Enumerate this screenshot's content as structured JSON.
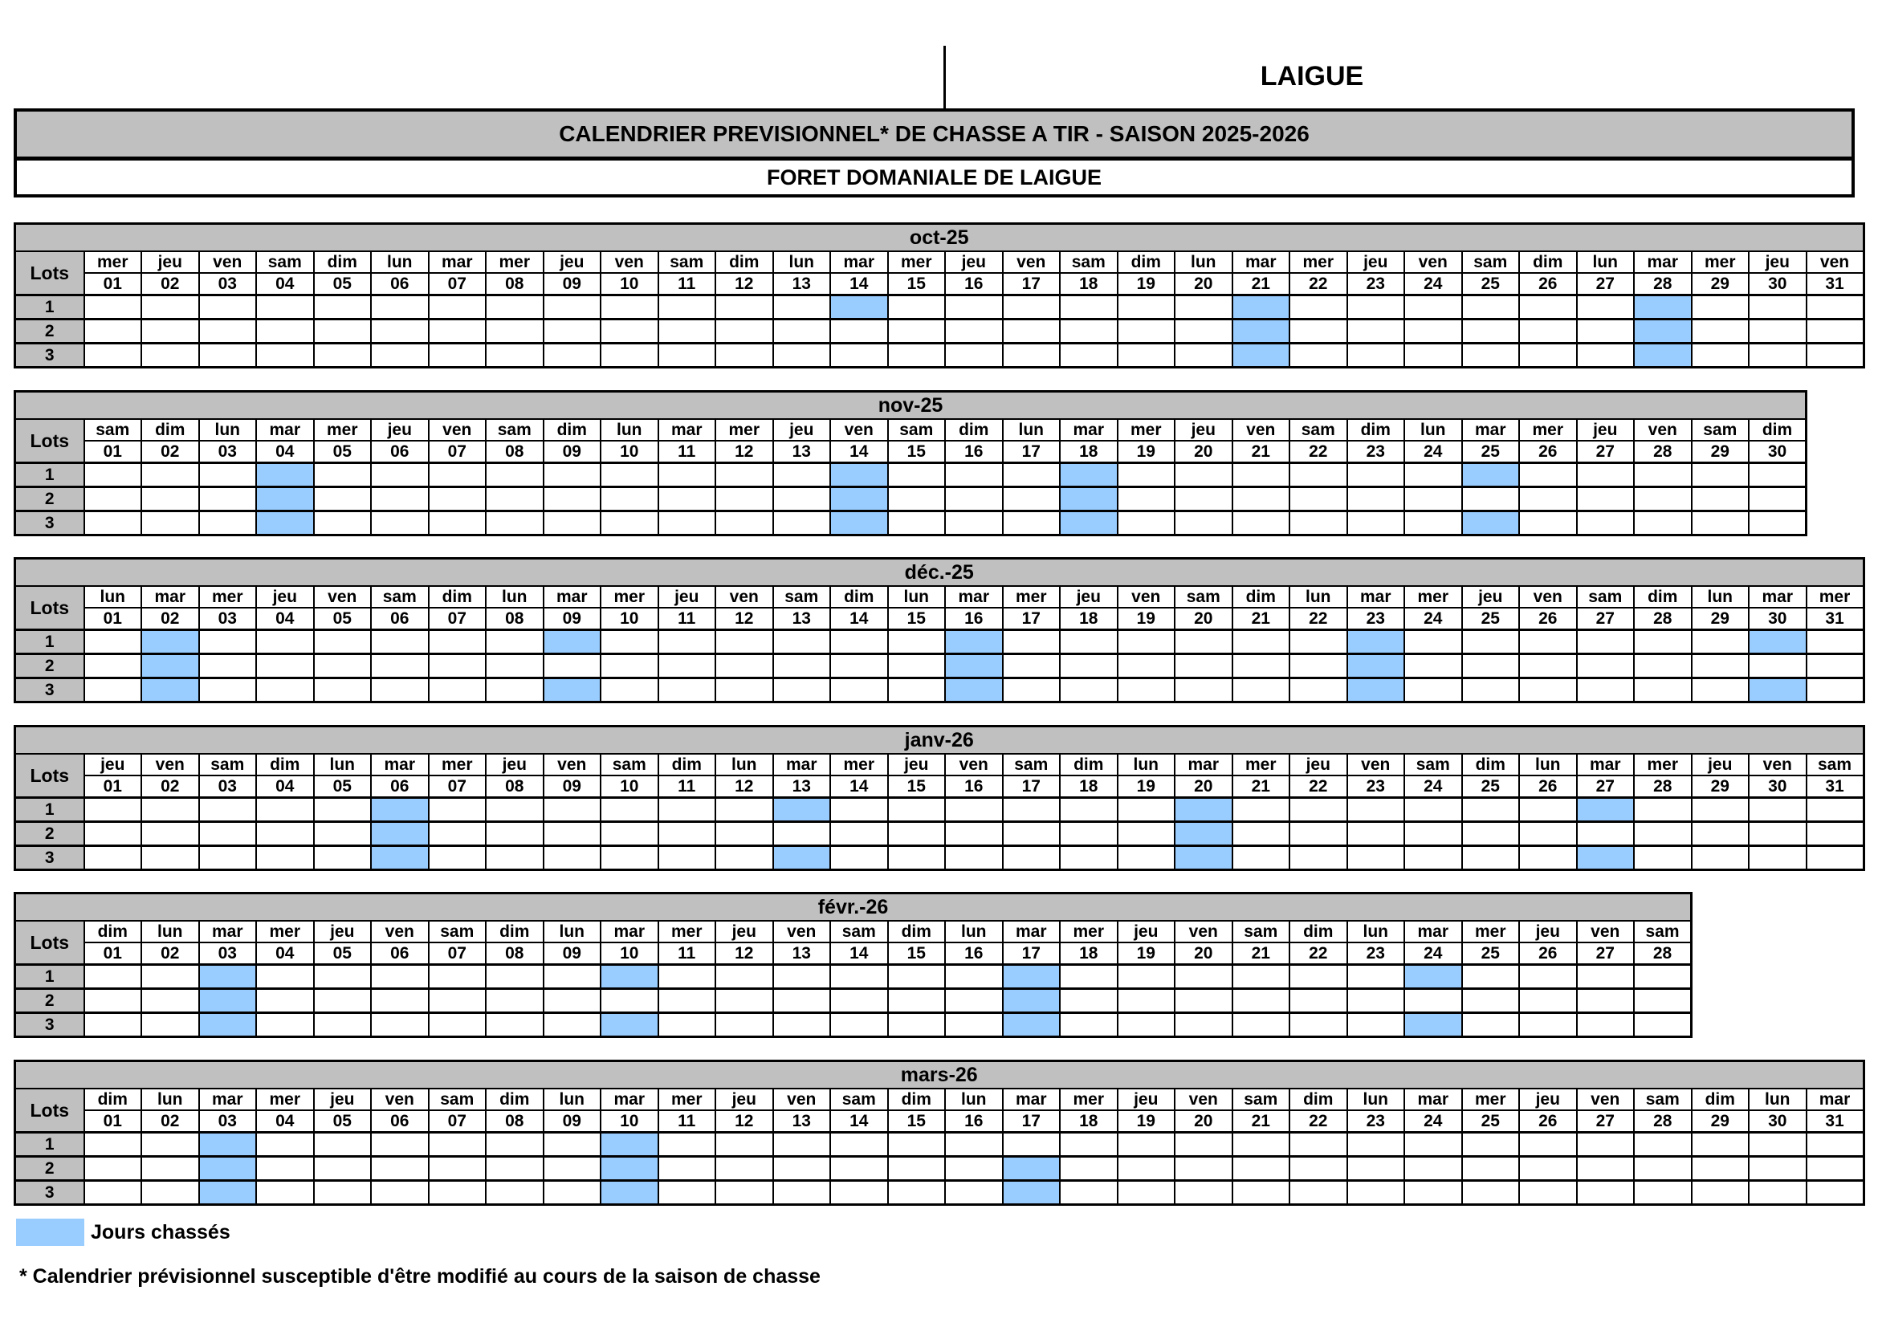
{
  "header": {
    "corner_label": "LAIGUE",
    "title": "CALENDRIER PREVISIONNEL* DE CHASSE A TIR - SAISON 2025-2026",
    "subtitle": "FORET DOMANIALE DE LAIGUE"
  },
  "lots_header": "Lots",
  "legend": {
    "label": "Jours chassés"
  },
  "footnote": "* Calendrier prévisionnel susceptible d'être modifié au cours de la saison de chasse",
  "colors": {
    "header_gray": "#C0C0C0",
    "hunted_blue": "#99CCFF",
    "grid_black": "#000000"
  },
  "months": [
    {
      "label": "oct-25",
      "days": 31,
      "weekdays": [
        "mer",
        "jeu",
        "ven",
        "sam",
        "dim",
        "lun",
        "mar",
        "mer",
        "jeu",
        "ven",
        "sam",
        "dim",
        "lun",
        "mar",
        "mer",
        "jeu",
        "ven",
        "sam",
        "dim",
        "lun",
        "mar",
        "mer",
        "jeu",
        "ven",
        "sam",
        "dim",
        "lun",
        "mar",
        "mer",
        "jeu",
        "ven"
      ],
      "day_numbers": [
        "01",
        "02",
        "03",
        "04",
        "05",
        "06",
        "07",
        "08",
        "09",
        "10",
        "11",
        "12",
        "13",
        "14",
        "15",
        "16",
        "17",
        "18",
        "19",
        "20",
        "21",
        "22",
        "23",
        "24",
        "25",
        "26",
        "27",
        "28",
        "29",
        "30",
        "31"
      ],
      "lots": [
        {
          "label": "1",
          "hunted_days": [
            14,
            21,
            28
          ]
        },
        {
          "label": "2",
          "hunted_days": [
            21,
            28
          ]
        },
        {
          "label": "3",
          "hunted_days": [
            21,
            28
          ]
        }
      ]
    },
    {
      "label": "nov-25",
      "days": 30,
      "weekdays": [
        "sam",
        "dim",
        "lun",
        "mar",
        "mer",
        "jeu",
        "ven",
        "sam",
        "dim",
        "lun",
        "mar",
        "mer",
        "jeu",
        "ven",
        "sam",
        "dim",
        "lun",
        "mar",
        "mer",
        "jeu",
        "ven",
        "sam",
        "dim",
        "lun",
        "mar",
        "mer",
        "jeu",
        "ven",
        "sam",
        "dim"
      ],
      "day_numbers": [
        "01",
        "02",
        "03",
        "04",
        "05",
        "06",
        "07",
        "08",
        "09",
        "10",
        "11",
        "12",
        "13",
        "14",
        "15",
        "16",
        "17",
        "18",
        "19",
        "20",
        "21",
        "22",
        "23",
        "24",
        "25",
        "26",
        "27",
        "28",
        "29",
        "30"
      ],
      "lots": [
        {
          "label": "1",
          "hunted_days": [
            4,
            14,
            18,
            25
          ]
        },
        {
          "label": "2",
          "hunted_days": [
            4,
            14,
            18
          ]
        },
        {
          "label": "3",
          "hunted_days": [
            4,
            14,
            18,
            25
          ]
        }
      ]
    },
    {
      "label": "déc.-25",
      "days": 31,
      "weekdays": [
        "lun",
        "mar",
        "mer",
        "jeu",
        "ven",
        "sam",
        "dim",
        "lun",
        "mar",
        "mer",
        "jeu",
        "ven",
        "sam",
        "dim",
        "lun",
        "mar",
        "mer",
        "jeu",
        "ven",
        "sam",
        "dim",
        "lun",
        "mar",
        "mer",
        "jeu",
        "ven",
        "sam",
        "dim",
        "lun",
        "mar",
        "mer"
      ],
      "day_numbers": [
        "01",
        "02",
        "03",
        "04",
        "05",
        "06",
        "07",
        "08",
        "09",
        "10",
        "11",
        "12",
        "13",
        "14",
        "15",
        "16",
        "17",
        "18",
        "19",
        "20",
        "21",
        "22",
        "23",
        "24",
        "25",
        "26",
        "27",
        "28",
        "29",
        "30",
        "31"
      ],
      "lots": [
        {
          "label": "1",
          "hunted_days": [
            2,
            9,
            16,
            23,
            30
          ]
        },
        {
          "label": "2",
          "hunted_days": [
            2,
            16,
            23
          ]
        },
        {
          "label": "3",
          "hunted_days": [
            2,
            9,
            16,
            23,
            30
          ]
        }
      ]
    },
    {
      "label": "janv-26",
      "days": 31,
      "weekdays": [
        "jeu",
        "ven",
        "sam",
        "dim",
        "lun",
        "mar",
        "mer",
        "jeu",
        "ven",
        "sam",
        "dim",
        "lun",
        "mar",
        "mer",
        "jeu",
        "ven",
        "sam",
        "dim",
        "lun",
        "mar",
        "mer",
        "jeu",
        "ven",
        "sam",
        "dim",
        "lun",
        "mar",
        "mer",
        "jeu",
        "ven",
        "sam"
      ],
      "day_numbers": [
        "01",
        "02",
        "03",
        "04",
        "05",
        "06",
        "07",
        "08",
        "09",
        "10",
        "11",
        "12",
        "13",
        "14",
        "15",
        "16",
        "17",
        "18",
        "19",
        "20",
        "21",
        "22",
        "23",
        "24",
        "25",
        "26",
        "27",
        "28",
        "29",
        "30",
        "31"
      ],
      "lots": [
        {
          "label": "1",
          "hunted_days": [
            6,
            13,
            20,
            27
          ]
        },
        {
          "label": "2",
          "hunted_days": [
            6,
            20
          ]
        },
        {
          "label": "3",
          "hunted_days": [
            6,
            13,
            20,
            27
          ]
        }
      ]
    },
    {
      "label": "févr.-26",
      "days": 28,
      "weekdays": [
        "dim",
        "lun",
        "mar",
        "mer",
        "jeu",
        "ven",
        "sam",
        "dim",
        "lun",
        "mar",
        "mer",
        "jeu",
        "ven",
        "sam",
        "dim",
        "lun",
        "mar",
        "mer",
        "jeu",
        "ven",
        "sam",
        "dim",
        "lun",
        "mar",
        "mer",
        "jeu",
        "ven",
        "sam"
      ],
      "day_numbers": [
        "01",
        "02",
        "03",
        "04",
        "05",
        "06",
        "07",
        "08",
        "09",
        "10",
        "11",
        "12",
        "13",
        "14",
        "15",
        "16",
        "17",
        "18",
        "19",
        "20",
        "21",
        "22",
        "23",
        "24",
        "25",
        "26",
        "27",
        "28"
      ],
      "lots": [
        {
          "label": "1",
          "hunted_days": [
            3,
            10,
            17,
            24
          ]
        },
        {
          "label": "2",
          "hunted_days": [
            3,
            17
          ]
        },
        {
          "label": "3",
          "hunted_days": [
            3,
            10,
            17,
            24
          ]
        }
      ]
    },
    {
      "label": "mars-26",
      "days": 31,
      "weekdays": [
        "dim",
        "lun",
        "mar",
        "mer",
        "jeu",
        "ven",
        "sam",
        "dim",
        "lun",
        "mar",
        "mer",
        "jeu",
        "ven",
        "sam",
        "dim",
        "lun",
        "mar",
        "mer",
        "jeu",
        "ven",
        "sam",
        "dim",
        "lun",
        "mar",
        "mer",
        "jeu",
        "ven",
        "sam",
        "dim",
        "lun",
        "mar"
      ],
      "day_numbers": [
        "01",
        "02",
        "03",
        "04",
        "05",
        "06",
        "07",
        "08",
        "09",
        "10",
        "11",
        "12",
        "13",
        "14",
        "15",
        "16",
        "17",
        "18",
        "19",
        "20",
        "21",
        "22",
        "23",
        "24",
        "25",
        "26",
        "27",
        "28",
        "29",
        "30",
        "31"
      ],
      "lots": [
        {
          "label": "1",
          "hunted_days": [
            3,
            10
          ]
        },
        {
          "label": "2",
          "hunted_days": [
            3,
            10,
            17
          ]
        },
        {
          "label": "3",
          "hunted_days": [
            3,
            10,
            17
          ]
        }
      ]
    }
  ]
}
